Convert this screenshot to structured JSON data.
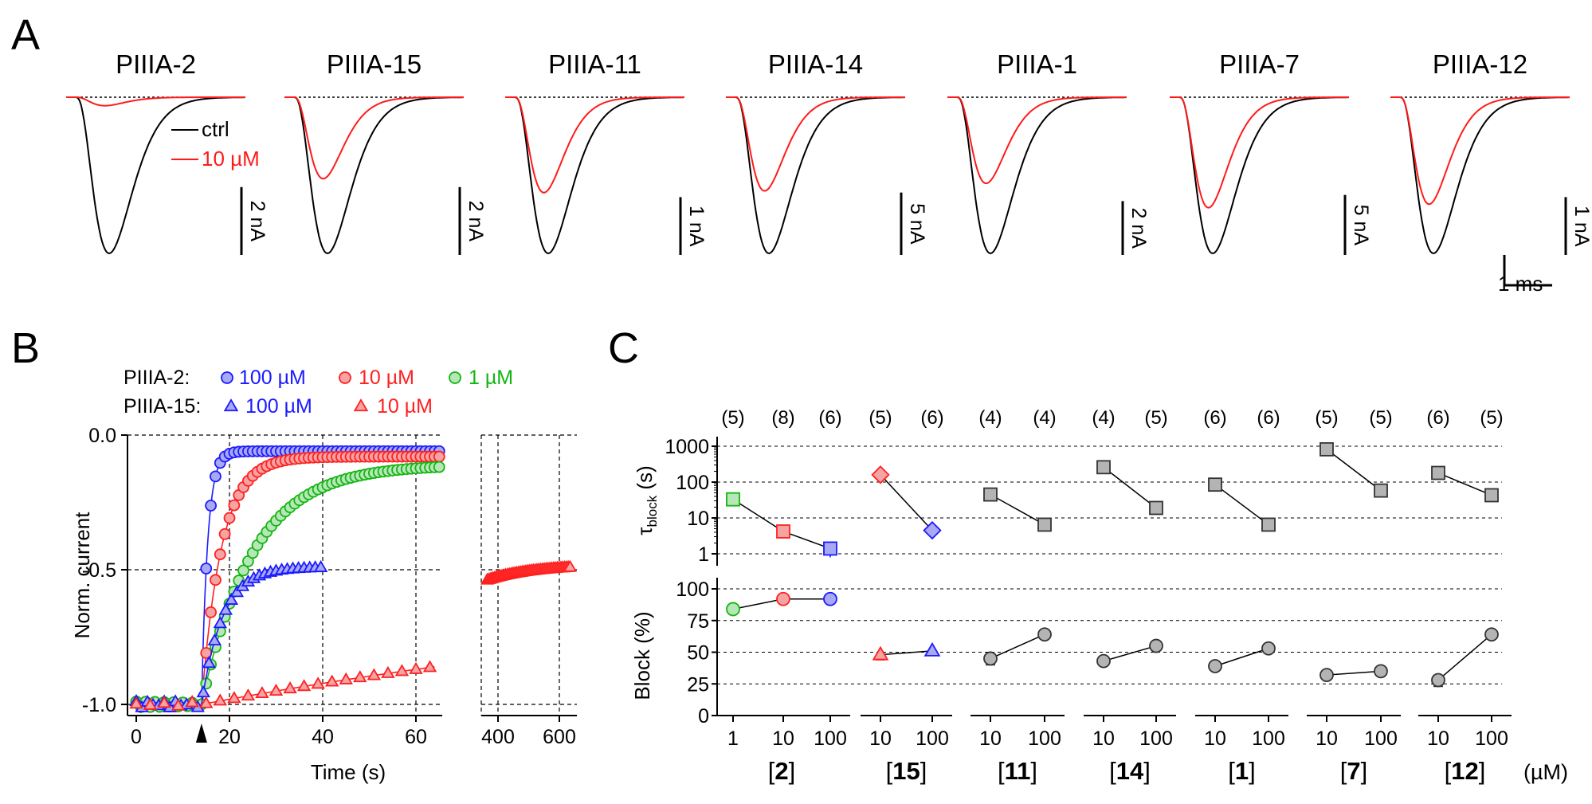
{
  "panels": {
    "a": "A",
    "b": "B",
    "c": "C"
  },
  "colors": {
    "ctrl": "#000000",
    "toxin": "#ff1a1a",
    "blue": "#1a1aff",
    "red": "#ff2020",
    "green": "#13b513",
    "gray": "#b4b4b4",
    "red_fill": "#f6a3a3",
    "blue_fill": "#a8a8f5",
    "green_fill": "#b7e7b7"
  },
  "chart_data": [
    {
      "type": "line",
      "panel": "A",
      "legend": {
        "ctrl": "ctrl",
        "toxin": "10 µM"
      },
      "time_scale_label": "1 ms",
      "traces": [
        {
          "title": "PIIIA-2",
          "scale_label": "2 nA",
          "scale_nA": 2,
          "peak_ctrl_nA": -4.6,
          "peak_10uM_nA": -0.25
        },
        {
          "title": "PIIIA-15",
          "scale_label": "2 nA",
          "scale_nA": 2,
          "peak_ctrl_nA": -4.6,
          "peak_10uM_nA": -2.4
        },
        {
          "title": "PIIIA-11",
          "scale_label": "1 nA",
          "scale_nA": 1,
          "peak_ctrl_nA": -2.7,
          "peak_10uM_nA": -1.65
        },
        {
          "title": "PIIIA-14",
          "scale_label": "5 nA",
          "scale_nA": 5,
          "peak_ctrl_nA": -12.5,
          "peak_10uM_nA": -7.5
        },
        {
          "title": "PIIIA-1",
          "scale_label": "2 nA",
          "scale_nA": 2,
          "peak_ctrl_nA": -5.8,
          "peak_10uM_nA": -3.2
        },
        {
          "title": "PIIIA-7",
          "scale_label": "5 nA",
          "scale_nA": 5,
          "peak_ctrl_nA": -13.0,
          "peak_10uM_nA": -9.2
        },
        {
          "title": "PIIIA-12",
          "scale_label": "1 nA",
          "scale_nA": 1,
          "peak_ctrl_nA": -2.7,
          "peak_10uM_nA": -1.85
        }
      ]
    },
    {
      "type": "scatter",
      "panel": "B",
      "xlabel": "Time (s)",
      "ylabel": "Norm. current",
      "ylim": [
        -1.05,
        0.0
      ],
      "yticks": [
        {
          "v": 0.0,
          "label": "0.0"
        },
        {
          "v": -0.5,
          "label": "-0.5"
        },
        {
          "v": -1.0,
          "label": "-1.0"
        }
      ],
      "xlim_left": [
        -2,
        66
      ],
      "xticks_left": [
        {
          "v": 0,
          "label": "0"
        },
        {
          "v": 20,
          "label": "20"
        },
        {
          "v": 40,
          "label": "40"
        },
        {
          "v": 60,
          "label": "60"
        }
      ],
      "xlim_right": [
        350,
        650
      ],
      "xticks_right": [
        {
          "v": 400,
          "label": "400"
        },
        {
          "v": 600,
          "label": "600"
        }
      ],
      "application_time_s": 14,
      "legend": {
        "row1_label": "PIIIA-2:",
        "row2_label": "PIIIA-15:",
        "entries_row1": [
          {
            "label": "100 µM",
            "color": "blue"
          },
          {
            "label": "10 µM",
            "color": "red"
          },
          {
            "label": "1 µM",
            "color": "green"
          }
        ],
        "entries_row2": [
          {
            "label": "100 µM",
            "color": "blue"
          },
          {
            "label": "10 µM",
            "color": "red"
          }
        ]
      },
      "series": [
        {
          "name": "PIIIA-2 100 µM",
          "marker": "circle",
          "color": "blue",
          "t0": 14,
          "t_end": 65,
          "y_final": -0.06,
          "tau_s": 1.3,
          "dt": 1
        },
        {
          "name": "PIIIA-2 10 µM",
          "marker": "circle",
          "color": "red",
          "t0": 14,
          "t_end": 65,
          "y_final": -0.08,
          "tau_s": 4.3,
          "dt": 1
        },
        {
          "name": "PIIIA-2 1 µM",
          "marker": "circle",
          "color": "green",
          "t0": 14,
          "t_end": 65,
          "y_final": -0.11,
          "tau_s": 11,
          "dt": 1
        },
        {
          "name": "PIIIA-15 100 µM",
          "marker": "triangle",
          "color": "blue",
          "t0": 14,
          "t_end": 40,
          "y_final": -0.49,
          "tau_s": 4.5,
          "dt": 1.2
        },
        {
          "name": "PIIIA-15 10 µM",
          "marker": "triangle",
          "color": "red",
          "t0": 14,
          "t_end": 64,
          "y_final": -0.48,
          "tau_s": 160,
          "dt": 3
        },
        {
          "name": "PIIIA-15 10 µM (late)",
          "marker": "triangle",
          "color": "red",
          "t0": 14,
          "t_start": 365,
          "t_end": 640,
          "y_final": -0.48,
          "tau_s": 160,
          "dt": 6
        }
      ]
    },
    {
      "type": "scatter",
      "panel": "C",
      "n_labels": [
        "(5)",
        "(8)",
        "(6)",
        "(5)",
        "(6)",
        "(4)",
        "(4)",
        "(4)",
        "(5)",
        "(6)",
        "(6)",
        "(5)",
        "(5)",
        "(6)",
        "(5)"
      ],
      "tau_axis": {
        "label_main": "τ",
        "label_sub": "block",
        "label_unit": " (s)",
        "scale": "log",
        "ylim": [
          1,
          1000
        ],
        "ticks": [
          {
            "v": 1,
            "label": "1"
          },
          {
            "v": 10,
            "label": "10"
          },
          {
            "v": 100,
            "label": "100"
          },
          {
            "v": 1000,
            "label": "1000"
          }
        ]
      },
      "block_axis": {
        "label": "Block (%)",
        "ylim": [
          0,
          100
        ],
        "ticks": [
          {
            "v": 0,
            "label": "0"
          },
          {
            "v": 25,
            "label": "25"
          },
          {
            "v": 50,
            "label": "50"
          },
          {
            "v": 75,
            "label": "75"
          },
          {
            "v": 100,
            "label": "100"
          }
        ]
      },
      "unit_label": "(µM)",
      "groups": [
        {
          "label": "2",
          "marker": "square|circle",
          "points": [
            {
              "conc": "1",
              "tau": 33,
              "block": 84,
              "color": "green"
            },
            {
              "conc": "10",
              "tau": 4.2,
              "block": 92,
              "color": "red"
            },
            {
              "conc": "100",
              "tau": 1.4,
              "tau_err_low": 0.8,
              "block": 92,
              "color": "blue"
            }
          ]
        },
        {
          "label": "15",
          "marker": "diamond|triangle",
          "points": [
            {
              "conc": "10",
              "tau": 160,
              "block": 48,
              "block_err": 4,
              "color": "red"
            },
            {
              "conc": "100",
              "tau": 4.5,
              "block": 51,
              "color": "blue"
            }
          ]
        },
        {
          "label": "11",
          "marker": "square|circle",
          "points": [
            {
              "conc": "10",
              "tau": 45,
              "block": 45,
              "block_err": 5,
              "color": "gray"
            },
            {
              "conc": "100",
              "tau": 6.5,
              "block": 64,
              "color": "gray"
            }
          ]
        },
        {
          "label": "14",
          "marker": "square|circle",
          "points": [
            {
              "conc": "10",
              "tau": 260,
              "block": 43,
              "color": "gray"
            },
            {
              "conc": "100",
              "tau": 19,
              "block": 55,
              "color": "gray"
            }
          ]
        },
        {
          "label": "1",
          "marker": "square|circle",
          "points": [
            {
              "conc": "10",
              "tau": 85,
              "block": 39,
              "color": "gray"
            },
            {
              "conc": "100",
              "tau": 6.5,
              "block": 53,
              "color": "gray"
            }
          ]
        },
        {
          "label": "7",
          "marker": "square|circle",
          "points": [
            {
              "conc": "10",
              "tau": 820,
              "block": 32,
              "color": "gray"
            },
            {
              "conc": "100",
              "tau": 58,
              "block": 35,
              "color": "gray"
            }
          ]
        },
        {
          "label": "12",
          "marker": "square|circle",
          "points": [
            {
              "conc": "10",
              "tau": 180,
              "block": 28,
              "block_err": 5,
              "color": "gray"
            },
            {
              "conc": "100",
              "tau": 43,
              "block": 64,
              "color": "gray"
            }
          ]
        }
      ]
    }
  ]
}
